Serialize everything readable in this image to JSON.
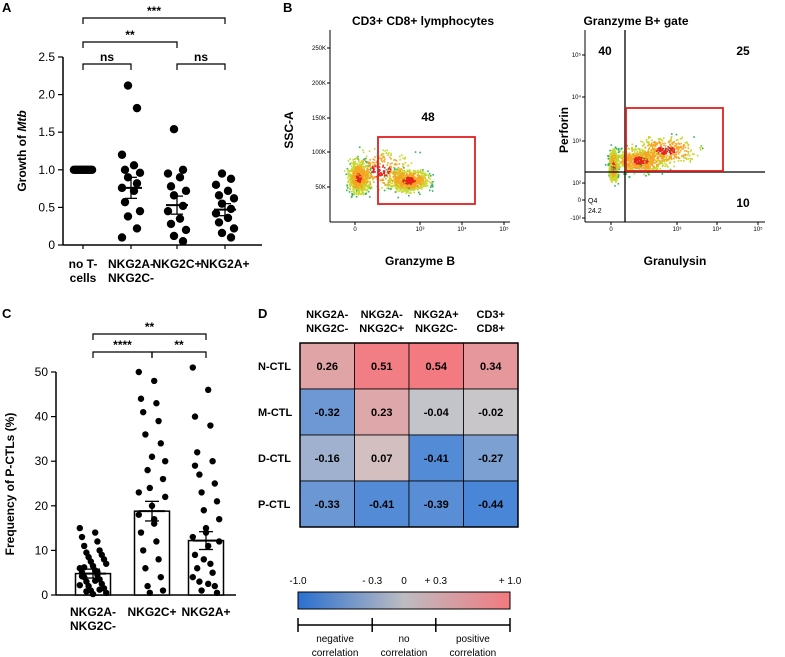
{
  "panels": {
    "A": "A",
    "B": "B",
    "C": "C",
    "D": "D"
  },
  "colors": {
    "gate": "#e02020",
    "neg": "#4a86d8",
    "mid": "#cfc9c9",
    "pos": "#f27a80",
    "dark": "#000000"
  },
  "chart_data": [
    {
      "id": "A",
      "type": "scatter",
      "ylabel_prefix": "Growth of ",
      "ylabel_italic": "Mtb",
      "ylim": [
        0,
        2.5
      ],
      "yticks": [
        "0",
        "0.5",
        "1.0",
        "1.5",
        "2.0",
        "2.5"
      ],
      "groups": [
        {
          "label": [
            "no T-",
            "cells"
          ],
          "points": [
            1,
            1,
            1,
            1,
            1,
            1,
            1,
            1,
            1,
            1,
            1,
            1,
            1,
            1
          ],
          "mean": 1.0,
          "sem": 0
        },
        {
          "label": [
            "NKG2A-",
            "NKG2C-"
          ],
          "points": [
            2.12,
            1.82,
            1.2,
            1.06,
            1.0,
            0.96,
            0.9,
            0.82,
            0.76,
            0.72,
            0.57,
            0.45,
            0.38,
            0.22,
            0.1
          ],
          "mean": 0.76,
          "sem": 0.14
        },
        {
          "label": [
            "NKG2C+"
          ],
          "points": [
            1.54,
            1.0,
            0.95,
            0.9,
            0.78,
            0.72,
            0.66,
            0.52,
            0.45,
            0.35,
            0.28,
            0.2,
            0.12,
            0.05
          ],
          "mean": 0.53,
          "sem": 0.12
        },
        {
          "label": [
            "NKG2A+"
          ],
          "points": [
            0.95,
            0.88,
            0.8,
            0.72,
            0.66,
            0.62,
            0.55,
            0.48,
            0.42,
            0.36,
            0.3,
            0.22,
            0.16,
            0.1
          ],
          "mean": 0.47,
          "sem": 0.08
        }
      ],
      "significance": [
        {
          "from": 0,
          "to": 3,
          "label": "***"
        },
        {
          "from": 0,
          "to": 2,
          "label": "**"
        },
        {
          "from": 0,
          "to": 1,
          "label": "ns"
        },
        {
          "from": 2,
          "to": 3,
          "label": "ns"
        }
      ]
    },
    {
      "id": "B1",
      "type": "scatter",
      "title": "CD3+ CD8+ lymphocytes",
      "xlabel": "Granzyme B",
      "ylabel": "SSC-A",
      "xticks": [
        "0",
        "10³",
        "10⁴",
        "10⁵"
      ],
      "yticks": [
        "50K",
        "100K",
        "150K",
        "200K",
        "250K"
      ],
      "gate_percent": "48"
    },
    {
      "id": "B2",
      "type": "scatter",
      "title": "Granzyme B+ gate",
      "xlabel": "Granulysin",
      "ylabel": "Perforin",
      "xticks": [
        "0",
        "10³",
        "10⁴",
        "10⁵"
      ],
      "yticks": [
        "10⁵",
        "10⁴",
        "10³",
        "10²",
        "0",
        "-10²"
      ],
      "quadrants": {
        "top_left": "40",
        "top_right": "25",
        "bottom_right": "10",
        "bottom_left_label": "Q4",
        "bottom_left_value": "24.2"
      }
    },
    {
      "id": "C",
      "type": "bar",
      "ylabel": "Frequency of P-CTLs (%)",
      "ylim": [
        0,
        50
      ],
      "yticks": [
        "0",
        "10",
        "20",
        "30",
        "40",
        "50"
      ],
      "categories": [
        [
          "NKG2A-",
          "NKG2C-"
        ],
        [
          "NKG2C+"
        ],
        [
          "NKG2A+"
        ]
      ],
      "values": [
        4.8,
        18.8,
        12.2
      ],
      "sem": [
        1.0,
        2.2,
        2.0
      ],
      "points": [
        [
          15,
          14,
          13,
          12,
          11,
          10,
          9.5,
          9,
          8.5,
          8,
          7.5,
          7,
          6.5,
          6,
          5.5,
          5,
          4.5,
          4,
          3.5,
          3,
          2.5,
          2,
          1.5,
          1,
          0.5,
          0.2,
          2.2,
          3.2,
          4.2,
          5.2,
          6.2,
          1.2,
          0.8
        ],
        [
          50,
          48,
          44,
          43,
          41,
          39,
          36,
          34,
          28,
          26,
          24,
          22,
          20,
          18,
          16,
          14,
          12,
          10,
          8,
          6,
          4,
          2,
          1,
          0.5,
          30,
          31,
          23,
          17
        ],
        [
          51,
          46,
          40,
          38,
          32,
          30,
          27,
          25,
          23,
          21,
          19,
          17,
          15,
          13,
          11,
          9,
          7,
          6,
          5,
          3,
          2,
          1,
          0.5,
          8,
          12,
          14,
          4,
          2.5,
          29
        ]
      ],
      "significance": [
        {
          "from": 0,
          "to": 2,
          "label": "**"
        },
        {
          "from": 0,
          "to": 1,
          "label": "****"
        },
        {
          "from": 1,
          "to": 2,
          "label": "**"
        }
      ]
    },
    {
      "id": "D",
      "type": "heatmap",
      "columns": [
        [
          "NKG2A-",
          "NKG2C-"
        ],
        [
          "NKG2A-",
          "NKG2C+"
        ],
        [
          "NKG2A+",
          "NKG2C-"
        ],
        [
          "CD3+",
          "CD8+"
        ]
      ],
      "rows": [
        "N-CTL",
        "M-CTL",
        "D-CTL",
        "P-CTL"
      ],
      "values": [
        [
          0.26,
          0.51,
          0.54,
          0.34
        ],
        [
          -0.32,
          0.23,
          -0.04,
          -0.02
        ],
        [
          -0.16,
          0.07,
          -0.41,
          -0.27
        ],
        [
          -0.33,
          -0.41,
          -0.39,
          -0.44
        ]
      ],
      "labels": [
        [
          "0.26",
          "0.51",
          "0.54",
          "0.34"
        ],
        [
          "-0.32",
          "0.23",
          "-0.04",
          "-0.02"
        ],
        [
          "-0.16",
          "0.07",
          "-0.41",
          "-0.27"
        ],
        [
          "-0.33",
          "-0.41",
          "-0.39",
          "-0.44"
        ]
      ],
      "legend": {
        "ticks": [
          "-1.0",
          "- 0.3",
          "0",
          "+ 0.3",
          "+ 1.0"
        ],
        "scale": [
          -1.0,
          -0.3,
          0,
          0.3,
          1.0
        ],
        "sections": [
          [
            "negative",
            "correlation"
          ],
          [
            "no",
            "correlation"
          ],
          [
            "positive",
            "correlation"
          ]
        ]
      }
    }
  ]
}
